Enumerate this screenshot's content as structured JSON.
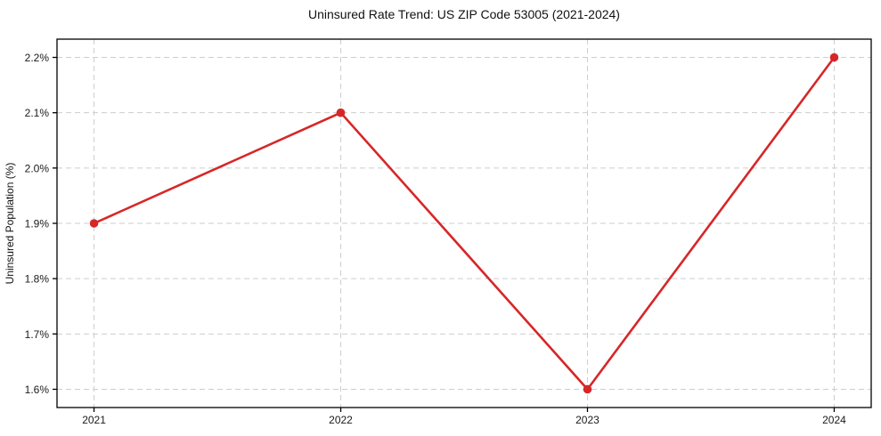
{
  "chart_data": {
    "type": "line",
    "title": "Uninsured Rate Trend: US ZIP Code 53005 (2021-2024)",
    "xlabel": "",
    "ylabel": "Uninsured Population (%)",
    "x": [
      2021,
      2022,
      2023,
      2024
    ],
    "x_tick_labels": [
      "2021",
      "2022",
      "2023",
      "2024"
    ],
    "series": [
      {
        "name": "Uninsured Population (%)",
        "values": [
          1.9,
          2.1,
          1.6,
          2.2
        ]
      }
    ],
    "y_ticks": [
      1.6,
      1.7,
      1.8,
      1.9,
      2.0,
      2.1,
      2.2
    ],
    "y_tick_labels": [
      "1.6%",
      "1.7%",
      "1.8%",
      "1.9%",
      "2.0%",
      "2.1%",
      "2.2%"
    ],
    "xlim": [
      2020.85,
      2024.15
    ],
    "ylim": [
      1.567,
      2.233
    ],
    "grid": true,
    "legend": false,
    "colors": {
      "line": "#d62728",
      "marker": "#d62728",
      "grid": "#cdcdcd",
      "spine": "#000000",
      "background": "#ffffff"
    },
    "line_width": 2.6,
    "marker_radius": 4.8,
    "grid_dash": "6 4"
  }
}
